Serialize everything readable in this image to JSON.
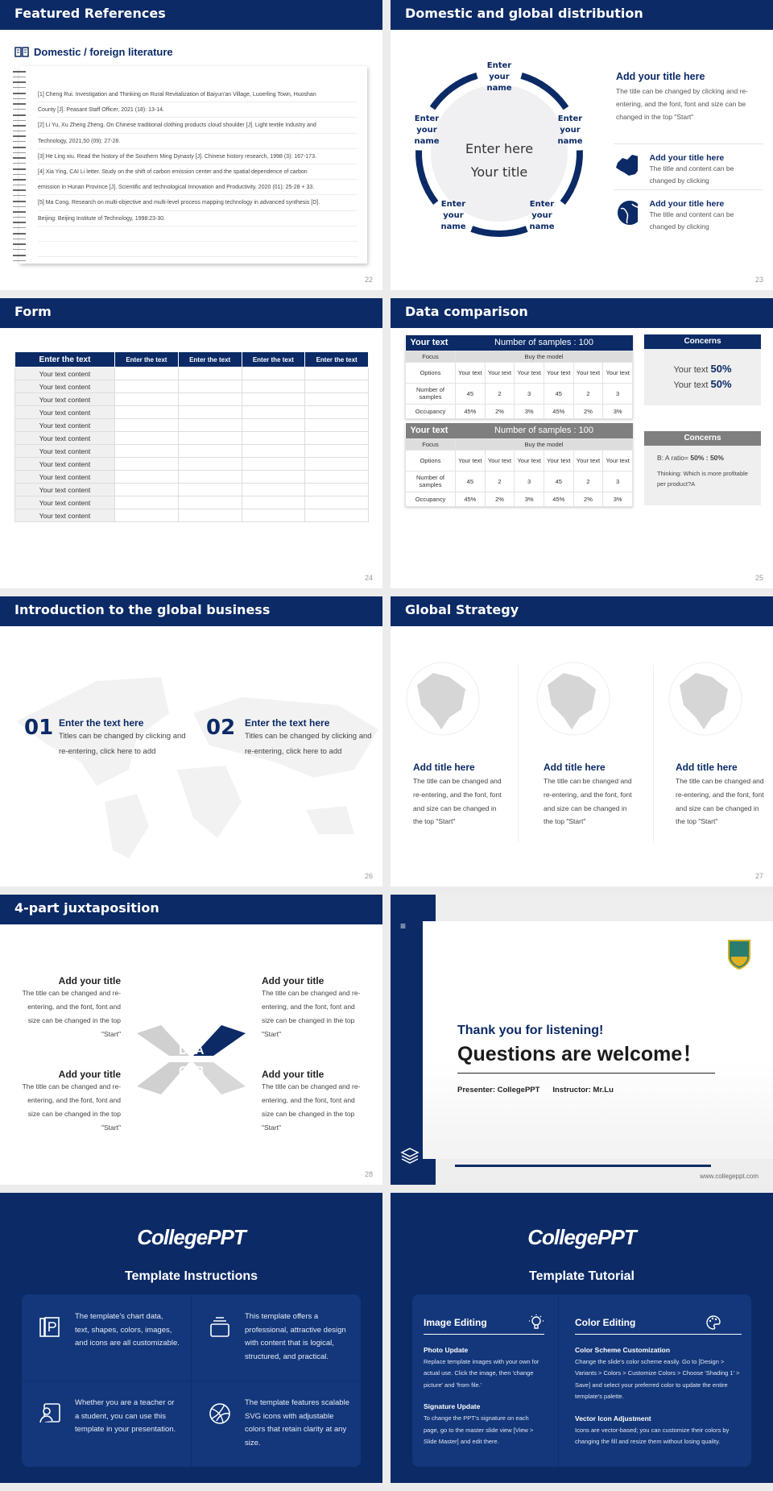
{
  "colors": {
    "primary": "#0b2a66",
    "gray": "#7f7f7f"
  },
  "s22": {
    "title": "Featured References",
    "subtitle": "Domestic / foreign literature",
    "page": "22",
    "lines": [
      "[1] Cheng Rui. Investigation and Thinking on Rural Revitalization of Baiyun'an Village, Luoerling Town, Huoshan",
      "County [J]. Peasant Staff Officer, 2021 (18): 13-14.",
      "[2] Li Yu, Xu Zheng Zheng. On Chinese traditional clothing products cloud shoulder [J]. Light textile Industry and",
      "Technology, 2021,50 (09): 27-28.",
      "[3] He Ling xiu. Read the history of the Southern Ming Dynasty [J]. Chinese history research, 1998 (3): 167-173.",
      "[4] Xia Ying, CAI Li letter. Study on the shift of carbon emission center and the spatial dependence of carbon",
      "emission in Hunan Province [J]. Scientific and technological Innovation and Productivity, 2020 (01): 25-28 + 33.",
      "[5] Ma Cong. Research on multi-objective and multi-level process mapping technology in advanced synthesis [D].",
      "Beijing: Beijing Institute of Technology, 1998:23-30.",
      "",
      ""
    ]
  },
  "s23": {
    "title": "Domestic and global distribution",
    "page": "23",
    "names": [
      "Enter your name",
      "Enter your name",
      "Enter your name",
      "Enter your name",
      "Enter your name"
    ],
    "center1": "Enter here",
    "center2": "Your title",
    "main_title": "Add your title here",
    "main_text": "The title can be changed by clicking and re-entering, and the font, font and size can be changed in the top \"Start\"",
    "items": [
      {
        "icon": "china-map-icon",
        "title": "Add your title here",
        "text": "The title and content can be changed by clicking"
      },
      {
        "icon": "globe-icon",
        "title": "Add your title here",
        "text": "The title and content can be changed by clicking"
      }
    ]
  },
  "s24": {
    "title": "Form",
    "page": "24",
    "headers": [
      "Enter the text",
      "Enter the text",
      "Enter the text",
      "Enter the text",
      "Enter the text"
    ],
    "row_label": "Your text content",
    "row_count": 12
  },
  "s25": {
    "title": "Data comparison",
    "page": "25",
    "tables": [
      {
        "head": "Your text",
        "samples": "Number of samples : 100",
        "focus": "Focus",
        "buy": "Buy the model",
        "options": "Options",
        "opt": "Your text",
        "nos": "Number of samples",
        "vals": [
          "45",
          "2",
          "3",
          "45",
          "2",
          "3"
        ],
        "occ": "Occupancy",
        "pcts": [
          "45%",
          "2%",
          "3%",
          "45%",
          "2%",
          "3%"
        ]
      },
      {
        "head": "Your text",
        "samples": "Number of samples : 100",
        "focus": "Focus",
        "buy": "Buy the model",
        "options": "Options",
        "opt": "Your text",
        "nos": "Number of samples",
        "vals": [
          "45",
          "2",
          "3",
          "45",
          "2",
          "3"
        ],
        "occ": "Occupancy",
        "pcts": [
          "45%",
          "2%",
          "3%",
          "45%",
          "2%",
          "3%"
        ]
      }
    ],
    "concern1": {
      "title": "Concerns",
      "l1": "Your text",
      "v1": "50%",
      "l2": "Your text",
      "v2": "50%"
    },
    "concern2": {
      "title": "Concerns",
      "ratio_label": "B: A ratio=",
      "ratio": "50% : 50%",
      "thinking": "Thinking: Which is more profitable per product?A"
    }
  },
  "s26": {
    "title": "Introduction to the global business",
    "page": "26",
    "items": [
      {
        "num": "01",
        "title": "Enter the text here",
        "text": "Titles can be changed by clicking and re-entering, click here to add"
      },
      {
        "num": "02",
        "title": "Enter the text here",
        "text": "Titles can be changed by clicking and re-entering, click here to add"
      }
    ]
  },
  "s27": {
    "title": "Global Strategy",
    "page": "27",
    "cols": [
      {
        "title": "Add title here",
        "text": "The title can be changed and re-entering, and the font, font and size can be changed in the top \"Start\""
      },
      {
        "title": "Add title here",
        "text": "The title can be changed and re-entering, and the font, font and size can be changed in the top \"Start\""
      },
      {
        "title": "Add title here",
        "text": "The title can be changed and re-entering, and the font, font and size can be changed in the top \"Start\""
      }
    ]
  },
  "s28": {
    "title": "4-part juxtaposition",
    "page": "28",
    "letters": [
      "D",
      "A",
      "C",
      "B"
    ],
    "quads": [
      {
        "title": "Add your title",
        "text": "The title can be changed and re-entering, and the font, font and size can be changed in the top \"Start\""
      },
      {
        "title": "Add your title",
        "text": "The title can be changed and re-entering, and the font, font and size can be changed in the top \"Start\""
      },
      {
        "title": "Add your title",
        "text": "The title can be changed and re-entering, and the font, font and size can be changed in the top \"Start\""
      },
      {
        "title": "Add your title",
        "text": "The title can be changed and re-entering, and the font, font and size can be changed in the top \"Start\""
      }
    ]
  },
  "thanks": {
    "line1": "Thank you for listening!",
    "line2": "Questions are welcome！",
    "presenter": "Presenter: CollegePPT",
    "instructor": "Instructor: Mr.Lu",
    "url": "www.collegeppt.com"
  },
  "instr": {
    "logo": "CollegePPT",
    "title": "Template Instructions",
    "cells": [
      {
        "icon": "book-p-icon",
        "text": "The template's chart data, text, shapes, colors, images, and icons are all customizable."
      },
      {
        "icon": "stack-window-icon",
        "text": "This template offers a professional, attractive design with content that is logical, structured, and practical."
      },
      {
        "icon": "teacher-board-icon",
        "text": "Whether you are a teacher or a student, you can use this template in your presentation."
      },
      {
        "icon": "ball-icon",
        "text": "The template features scalable SVG icons with adjustable colors that retain clarity at any size."
      }
    ]
  },
  "tut": {
    "logo": "CollegePPT",
    "title": "Template Tutorial",
    "left": {
      "head": "Image Editing",
      "icon": "lightbulb-icon",
      "s1": "Photo Update",
      "t1": "Replace template images with your own for actual use. Click the image, then 'change picture' and 'from file.'",
      "s2": "Signature Update",
      "t2": "To change the PPT's signature on each page, go to the master slide view [View > Slide Master] and edit there."
    },
    "right": {
      "head": "Color Editing",
      "icon": "palette-icon",
      "s1": "Color Scheme Customization",
      "t1": "Change the slide's color scheme easily. Go to [Design > Variants > Colors > Customize Colors > Choose 'Shading 1' > Save] and select your preferred color to update the entire template's palette.",
      "s2": "Vector Icon Adjustment",
      "t2": "Icons are vector-based; you can customize their colors by changing the fill and resize them without losing quality."
    }
  }
}
